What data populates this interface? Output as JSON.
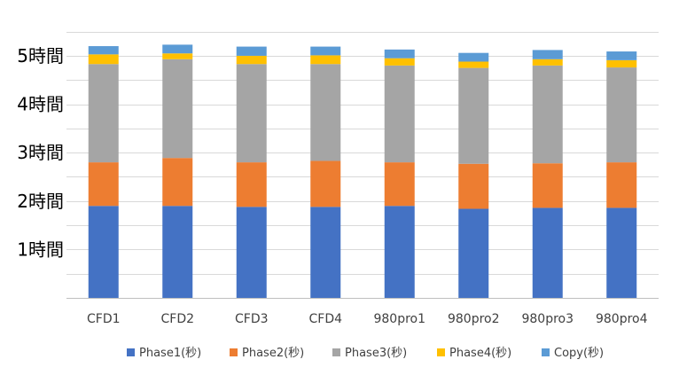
{
  "chart_data": {
    "type": "bar",
    "stacked": true,
    "title": "",
    "xlabel": "",
    "ylabel": "",
    "categories": [
      "CFD1",
      "CFD2",
      "CFD3",
      "CFD4",
      "980pro1",
      "980pro2",
      "980pro3",
      "980pro4"
    ],
    "y_ticks": [
      {
        "value": 1,
        "label": "1時間"
      },
      {
        "value": 2,
        "label": "2時間"
      },
      {
        "value": 3,
        "label": "3時間"
      },
      {
        "value": 4,
        "label": "4時間"
      },
      {
        "value": 5,
        "label": "5時間"
      }
    ],
    "ylim": [
      0,
      5.75
    ],
    "grid": true,
    "legend_position": "bottom",
    "series": [
      {
        "name": "Phase1(秒)",
        "color": "#4472C4",
        "values": [
          1.9,
          1.9,
          1.88,
          1.88,
          1.9,
          1.84,
          1.86,
          1.86
        ]
      },
      {
        "name": "Phase2(秒)",
        "color": "#ED7D31",
        "values": [
          0.9,
          0.99,
          0.92,
          0.95,
          0.9,
          0.93,
          0.92,
          0.94
        ]
      },
      {
        "name": "Phase3(秒)",
        "color": "#A5A5A5",
        "values": [
          2.03,
          2.04,
          2.03,
          2.0,
          2.0,
          1.98,
          2.02,
          1.96
        ]
      },
      {
        "name": "Phase4(秒)",
        "color": "#FFC000",
        "values": [
          0.2,
          0.12,
          0.17,
          0.18,
          0.15,
          0.13,
          0.13,
          0.15
        ]
      },
      {
        "name": "Copy(秒)",
        "color": "#5B9BD5",
        "values": [
          0.17,
          0.18,
          0.19,
          0.18,
          0.18,
          0.18,
          0.19,
          0.18
        ]
      }
    ]
  }
}
